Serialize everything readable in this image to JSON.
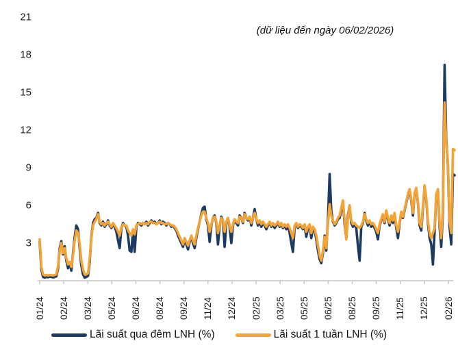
{
  "annotation": "(dữ liệu đến ngày 06/02/2026)",
  "colors": {
    "overnight_line": "#1D3A63",
    "one_week_line": "#F4A434",
    "axis": "#C6C6C6",
    "text": "#1A1A1A"
  },
  "legend": {
    "overnight_label": "Lãi suất qua đêm LNH (%)",
    "one_week_label": "Lãi suất 1 tuần LNH (%)"
  },
  "chart_data": {
    "type": "line",
    "title": "",
    "annotation": "(dữ liệu đến ngày 06/02/2026)",
    "grid": false,
    "legend_position": "bottom",
    "ylim": [
      0,
      21
    ],
    "y_ticks": [
      3,
      6,
      9,
      12,
      15,
      18,
      21
    ],
    "x_tick_labels": [
      "01/24",
      "02/24",
      "03/24",
      "05/24",
      "06/24",
      "08/24",
      "09/24",
      "11/24",
      "12/24",
      "02/25",
      "03/25",
      "05/25",
      "06/25",
      "08/25",
      "09/25",
      "11/25",
      "12/25",
      "02/26"
    ],
    "series": [
      {
        "name": "Lãi suất qua đêm LNH (%)",
        "color": "#1D3A63",
        "values": [
          3.1,
          0.9,
          0.3,
          0.25,
          0.3,
          0.28,
          0.32,
          0.3,
          0.27,
          0.3,
          0.35,
          1.0,
          2.6,
          3.15,
          2.1,
          2.75,
          1.6,
          1.0,
          1.4,
          0.8,
          2.2,
          3.5,
          4.4,
          4.1,
          2.6,
          1.2,
          0.5,
          0.25,
          0.3,
          0.4,
          1.5,
          3.5,
          4.6,
          4.9,
          5.0,
          5.4,
          4.6,
          4.4,
          4.7,
          4.3,
          4.5,
          4.8,
          4.4,
          4.2,
          4.5,
          4.3,
          3.9,
          3.2,
          2.6,
          4.2,
          4.6,
          4.4,
          4.3,
          3.6,
          2.4,
          2.3,
          4.0,
          2.3,
          4.3,
          4.6,
          4.5,
          4.4,
          4.6,
          4.5,
          4.7,
          4.4,
          4.6,
          4.8,
          4.6,
          4.7,
          4.5,
          4.6,
          4.8,
          4.5,
          4.7,
          4.6,
          4.4,
          4.6,
          4.5,
          4.3,
          4.4,
          4.2,
          4.0,
          3.6,
          3.3,
          3.0,
          2.7,
          3.3,
          2.9,
          2.5,
          3.1,
          3.5,
          3.0,
          2.6,
          3.4,
          4.1,
          4.7,
          5.3,
          5.8,
          5.9,
          4.9,
          4.4,
          3.1,
          4.4,
          5.0,
          5.2,
          4.6,
          2.9,
          4.3,
          5.1,
          4.8,
          2.7,
          4.6,
          5.0,
          4.3,
          3.0,
          4.4,
          4.9,
          4.6,
          4.4,
          5.2,
          5.0,
          4.6,
          5.4,
          5.0,
          4.8,
          5.1,
          4.4,
          5.0,
          5.7,
          4.9,
          4.4,
          4.7,
          4.3,
          4.6,
          4.4,
          4.1,
          4.4,
          4.6,
          4.3,
          4.5,
          4.2,
          4.4,
          4.6,
          4.3,
          4.5,
          4.2,
          4.4,
          4.1,
          4.4,
          3.8,
          3.0,
          2.3,
          4.3,
          4.5,
          4.2,
          4.4,
          4.3,
          4.1,
          4.4,
          3.5,
          4.2,
          4.4,
          3.4,
          4.2,
          4.0,
          3.3,
          2.4,
          1.7,
          1.4,
          2.2,
          3.6,
          2.4,
          4.8,
          8.5,
          5.6,
          4.7,
          4.4,
          4.6,
          4.9,
          5.0,
          5.6,
          6.3,
          4.5,
          3.4,
          5.2,
          6.0,
          4.6,
          4.3,
          4.5,
          4.2,
          2.8,
          1.6,
          4.3,
          4.6,
          5.4,
          4.8,
          4.4,
          4.7,
          4.3,
          4.5,
          4.2,
          3.9,
          3.3,
          4.4,
          4.8,
          5.2,
          4.6,
          5.5,
          4.9,
          4.4,
          5.1,
          4.6,
          5.3,
          4.2,
          3.4,
          4.6,
          5.4,
          5.0,
          5.6,
          6.2,
          6.8,
          7.2,
          6.4,
          5.2,
          6.9,
          7.3,
          6.2,
          4.4,
          4.0,
          5.8,
          7.5,
          6.5,
          4.6,
          3.4,
          2.9,
          1.3,
          3.9,
          6.8,
          7.2,
          4.3,
          2.7,
          5.5,
          17.2,
          11.3,
          9.2,
          4.3,
          2.9,
          8.5,
          8.4
        ]
      },
      {
        "name": "Lãi suất 1 tuần LNH (%)",
        "color": "#F4A434",
        "values": [
          3.3,
          1.1,
          0.5,
          0.42,
          0.46,
          0.42,
          0.46,
          0.44,
          0.42,
          0.46,
          0.5,
          1.2,
          2.4,
          3.0,
          2.2,
          2.6,
          1.8,
          1.3,
          1.5,
          1.1,
          2.0,
          3.2,
          4.0,
          3.8,
          2.9,
          1.6,
          0.9,
          0.5,
          0.5,
          0.6,
          1.8,
          3.4,
          4.4,
          4.7,
          4.9,
          5.3,
          4.7,
          4.5,
          4.6,
          4.4,
          4.6,
          4.7,
          4.5,
          4.3,
          4.6,
          4.4,
          4.2,
          3.9,
          3.6,
          4.3,
          4.5,
          4.4,
          4.4,
          4.0,
          3.8,
          3.6,
          4.1,
          3.7,
          4.4,
          4.5,
          4.6,
          4.5,
          4.6,
          4.5,
          4.6,
          4.5,
          4.7,
          4.7,
          4.6,
          4.6,
          4.5,
          4.6,
          4.7,
          4.6,
          4.6,
          4.5,
          4.5,
          4.6,
          4.5,
          4.4,
          4.4,
          4.3,
          4.1,
          3.8,
          3.5,
          3.2,
          2.9,
          3.4,
          3.1,
          2.8,
          3.2,
          3.6,
          3.2,
          2.9,
          3.6,
          4.2,
          4.7,
          5.2,
          5.5,
          5.5,
          5.0,
          4.6,
          3.9,
          4.5,
          5.0,
          5.1,
          4.7,
          3.8,
          4.4,
          5.0,
          4.8,
          3.9,
          4.7,
          5.0,
          4.4,
          3.9,
          4.5,
          4.9,
          4.7,
          4.6,
          5.1,
          5.0,
          4.7,
          5.3,
          5.0,
          4.9,
          5.1,
          4.6,
          5.0,
          5.4,
          4.9,
          4.6,
          4.8,
          4.5,
          4.7,
          4.5,
          4.3,
          4.5,
          4.7,
          4.4,
          4.6,
          4.4,
          4.5,
          4.7,
          4.4,
          4.6,
          4.3,
          4.5,
          4.3,
          4.5,
          4.2,
          3.8,
          3.4,
          4.4,
          4.6,
          4.3,
          4.5,
          4.4,
          4.2,
          4.5,
          3.9,
          4.3,
          4.5,
          3.8,
          4.3,
          4.1,
          3.6,
          2.8,
          2.0,
          1.6,
          2.4,
          3.5,
          2.6,
          4.5,
          6.1,
          5.2,
          4.8,
          4.5,
          4.7,
          5.0,
          5.2,
          5.8,
          6.4,
          4.8,
          3.3,
          5.0,
          6.0,
          4.8,
          4.5,
          4.6,
          4.4,
          4.3,
          4.2,
          4.4,
          4.7,
          5.3,
          4.9,
          4.6,
          4.8,
          4.5,
          4.6,
          4.4,
          4.1,
          3.8,
          4.5,
          4.9,
          5.3,
          4.7,
          5.6,
          5.0,
          4.6,
          5.2,
          4.8,
          5.4,
          4.4,
          3.9,
          4.7,
          5.5,
          5.1,
          5.7,
          6.3,
          6.9,
          7.3,
          6.5,
          5.4,
          7.0,
          7.4,
          6.3,
          4.6,
          4.3,
          6.0,
          7.6,
          6.6,
          4.8,
          3.8,
          3.4,
          3.8,
          4.2,
          6.9,
          7.3,
          4.6,
          3.4,
          5.8,
          14.2,
          11.0,
          9.5,
          4.8,
          3.8,
          10.5,
          10.4
        ]
      }
    ]
  }
}
